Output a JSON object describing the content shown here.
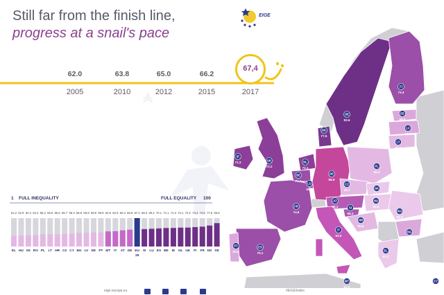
{
  "header": {
    "title_line1": "Still far from the finish line,",
    "title_line2": "progress at a snail's pace",
    "logo_text": "EIGE"
  },
  "timeline": {
    "points": [
      {
        "year": "2005",
        "value": "62.0"
      },
      {
        "year": "2010",
        "value": "63.8"
      },
      {
        "year": "2012",
        "value": "65.0"
      },
      {
        "year": "2015",
        "value": "66.2"
      }
    ],
    "latest": {
      "year": "2017",
      "value": "67,4"
    }
  },
  "scale": {
    "min_number": "1",
    "min_label": "FULL INEQUALITY",
    "max_label": "FULL EQUALITY",
    "max_number": "100"
  },
  "bars": [
    {
      "code": "EL",
      "value": 51.2
    },
    {
      "code": "HU",
      "value": 51.9
    },
    {
      "code": "SK",
      "value": 52.4
    },
    {
      "code": "RO",
      "value": 52.4
    },
    {
      "code": "PL",
      "value": 55.2
    },
    {
      "code": "LT",
      "value": 55.5
    },
    {
      "code": "HR",
      "value": 55.6
    },
    {
      "code": "CZ",
      "value": 55.7
    },
    {
      "code": "CY",
      "value": 56.3
    },
    {
      "code": "BG",
      "value": 58.8
    },
    {
      "code": "LV",
      "value": 58.9
    },
    {
      "code": "EE",
      "value": 59.8
    },
    {
      "code": "PT",
      "value": 59.9
    },
    {
      "code": "MT",
      "value": 62.5
    },
    {
      "code": "IT",
      "value": 63.0
    },
    {
      "code": "AT",
      "value": 65.3
    },
    {
      "code": "DE",
      "value": 66.9
    },
    {
      "code": "EU",
      "sub": "28",
      "value": 67.4
    },
    {
      "code": "SI",
      "value": 68.3
    },
    {
      "code": "LU",
      "value": 69.2
    },
    {
      "code": "ES",
      "value": 70.1
    },
    {
      "code": "BE",
      "value": 71.1
    },
    {
      "code": "IE",
      "value": 71.3
    },
    {
      "code": "NL",
      "value": 72.1
    },
    {
      "code": "UK",
      "value": 72.2
    },
    {
      "code": "FI",
      "value": 73.4
    },
    {
      "code": "FR",
      "value": 74.6
    },
    {
      "code": "DK",
      "value": 77.5
    },
    {
      "code": "SE",
      "value": 83.6
    }
  ],
  "map_labels": [
    {
      "code": "SE",
      "value": "83.6"
    },
    {
      "code": "FI",
      "value": "73.4"
    },
    {
      "code": "EE",
      "value": "59.8"
    },
    {
      "code": "LV",
      "value": "58.9"
    },
    {
      "code": "LT",
      "value": "55.5"
    },
    {
      "code": "DK",
      "value": "77.5"
    },
    {
      "code": "IE",
      "value": "71.3"
    },
    {
      "code": "UK",
      "value": "72.2"
    },
    {
      "code": "NL",
      "value": "72.1"
    },
    {
      "code": "BE",
      "value": "71.1"
    },
    {
      "code": "LU",
      "value": "69.2"
    },
    {
      "code": "DE",
      "value": "66.9"
    },
    {
      "code": "PL",
      "value": "55.2"
    },
    {
      "code": "CZ",
      "value": "55.7"
    },
    {
      "code": "SK",
      "value": "52.4"
    },
    {
      "code": "AT",
      "value": "65.3"
    },
    {
      "code": "HU",
      "value": "51.9"
    },
    {
      "code": "SI",
      "value": "68.3"
    },
    {
      "code": "HR",
      "value": "55.6"
    },
    {
      "code": "RO",
      "value": "52.4"
    },
    {
      "code": "BG",
      "value": "58.8"
    },
    {
      "code": "FR",
      "value": "74.6"
    },
    {
      "code": "ES",
      "value": "70.1"
    },
    {
      "code": "PT",
      "value": "59.9"
    },
    {
      "code": "IT",
      "value": "63.0"
    },
    {
      "code": "EL",
      "value": "51.2"
    },
    {
      "code": "MT",
      "value": "62.5"
    },
    {
      "code": "CY",
      "value": "56.3"
    }
  ],
  "footer": {
    "link": "eige.europa.eu",
    "hashtag": "#EIGEIndex"
  },
  "colors": {
    "timeline": "#f0c419",
    "title_accent": "#8b3f8f",
    "bar_gray": "#d6d6dc",
    "bar_light": "#e3b9e3",
    "bar_mid": "#c46ac8",
    "bar_dark": "#6e2f86",
    "eu_bar": "#2b3a8c"
  }
}
